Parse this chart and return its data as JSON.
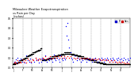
{
  "title": "Milwaukee Weather Evapotranspiration vs Rain per Day (Inches)",
  "legend_labels": [
    "ET",
    "Rain"
  ],
  "legend_colors_legend": [
    "#0000cc",
    "#cc0000"
  ],
  "et_color": "#000000",
  "rain_color": "#0000ff",
  "extra_color": "#ff0000",
  "background_color": "#ffffff",
  "grid_color": "#888888",
  "n_days": 365,
  "ylim": [
    0,
    0.5
  ],
  "xlim": [
    0,
    365
  ],
  "month_ticks": [
    0,
    31,
    59,
    90,
    120,
    151,
    181,
    212,
    243,
    273,
    304,
    334
  ],
  "month_labels": [
    "J",
    "F",
    "M",
    "A",
    "M",
    "J",
    "J",
    "A",
    "S",
    "O",
    "N",
    "D"
  ],
  "dot_size": 1.0,
  "et_data": [
    0.03,
    0.03,
    0.04,
    0.03,
    0.04,
    0.03,
    0.04,
    0.03,
    0.04,
    0.04,
    0.05,
    0.04,
    0.05,
    0.04,
    0.05,
    0.05,
    0.06,
    0.05,
    0.06,
    0.05,
    0.06,
    0.06,
    0.07,
    0.06,
    0.07,
    0.07,
    0.07,
    0.08,
    0.07,
    0.08,
    0.08,
    0.08,
    0.09,
    0.08,
    0.09,
    0.09,
    0.09,
    0.1,
    0.09,
    0.1,
    0.1,
    0.1,
    0.11,
    0.1,
    0.11,
    0.11,
    0.11,
    0.12,
    0.11,
    0.12,
    0.12,
    0.12,
    0.13,
    0.12,
    0.13,
    0.13,
    0.13,
    0.14,
    0.13,
    0.14,
    0.14,
    0.14,
    0.15,
    0.14,
    0.15,
    0.15,
    0.15,
    0.15,
    0.16,
    0.15,
    0.16,
    0.16,
    0.16,
    0.17,
    0.16,
    0.17,
    0.17,
    0.17,
    0.17,
    0.18,
    0.17,
    0.18,
    0.18,
    0.18,
    0.18,
    0.19,
    0.18,
    0.19,
    0.19,
    0.19,
    0.08,
    0.07,
    0.08,
    0.07,
    0.08,
    0.07,
    0.08,
    0.07,
    0.08,
    0.07,
    0.08,
    0.07,
    0.08,
    0.07,
    0.09,
    0.08,
    0.09,
    0.08,
    0.09,
    0.08,
    0.09,
    0.09,
    0.1,
    0.09,
    0.1,
    0.09,
    0.1,
    0.09,
    0.1,
    0.09,
    0.11,
    0.1,
    0.11,
    0.1,
    0.11,
    0.1,
    0.11,
    0.1,
    0.11,
    0.1,
    0.12,
    0.11,
    0.12,
    0.11,
    0.12,
    0.11,
    0.12,
    0.11,
    0.12,
    0.11,
    0.13,
    0.12,
    0.13,
    0.12,
    0.13,
    0.12,
    0.13,
    0.12,
    0.13,
    0.12,
    0.14,
    0.13,
    0.14,
    0.13,
    0.14,
    0.13,
    0.14,
    0.13,
    0.14,
    0.13,
    0.15,
    0.14,
    0.15,
    0.14,
    0.15,
    0.14,
    0.15,
    0.14,
    0.15,
    0.14,
    0.15,
    0.14,
    0.15,
    0.14,
    0.15,
    0.14,
    0.15,
    0.14,
    0.15,
    0.14,
    0.14,
    0.13,
    0.14,
    0.13,
    0.14,
    0.13,
    0.14,
    0.13,
    0.14,
    0.13,
    0.13,
    0.12,
    0.13,
    0.12,
    0.13,
    0.12,
    0.13,
    0.12,
    0.13,
    0.12,
    0.12,
    0.11,
    0.12,
    0.11,
    0.12,
    0.11,
    0.12,
    0.11,
    0.12,
    0.11,
    0.11,
    0.1,
    0.11,
    0.1,
    0.11,
    0.1,
    0.11,
    0.1,
    0.11,
    0.1,
    0.1,
    0.09,
    0.1,
    0.09,
    0.1,
    0.09,
    0.1,
    0.09,
    0.1,
    0.09,
    0.09,
    0.08,
    0.09,
    0.08,
    0.09,
    0.08,
    0.09,
    0.08,
    0.09,
    0.08,
    0.08,
    0.07,
    0.08,
    0.07,
    0.08,
    0.07,
    0.08,
    0.07,
    0.08,
    0.07,
    0.07,
    0.06,
    0.07,
    0.06,
    0.07,
    0.06,
    0.07,
    0.06,
    0.07,
    0.06,
    0.06,
    0.05,
    0.06,
    0.05,
    0.06,
    0.05,
    0.06,
    0.05,
    0.06,
    0.05,
    0.05,
    0.04,
    0.05,
    0.04,
    0.05,
    0.04,
    0.05,
    0.04,
    0.05,
    0.04,
    0.04,
    0.03,
    0.04,
    0.03,
    0.04,
    0.03,
    0.04,
    0.03,
    0.04,
    0.03,
    0.03,
    0.03,
    0.03,
    0.03,
    0.03,
    0.03,
    0.03,
    0.03,
    0.03,
    0.03,
    0.03,
    0.03,
    0.03,
    0.03,
    0.03,
    0.03,
    0.03,
    0.03,
    0.03,
    0.03,
    0.03,
    0.03,
    0.03,
    0.03,
    0.03,
    0.03,
    0.03,
    0.03,
    0.03,
    0.03,
    0.03,
    0.03,
    0.03,
    0.03,
    0.03,
    0.03,
    0.03,
    0.03,
    0.03,
    0.03,
    0.03,
    0.03,
    0.03,
    0.03,
    0.03,
    0.03,
    0.03,
    0.03,
    0.03,
    0.03,
    0.03,
    0.03,
    0.03,
    0.03,
    0.03,
    0.03,
    0.03,
    0.03,
    0.03,
    0.03,
    0.03,
    0.03,
    0.03,
    0.03,
    0.03,
    0.03,
    0.03,
    0.03,
    0.03,
    0.03,
    0.03,
    0.03,
    0.03,
    0.03,
    0.03
  ],
  "rain_data": [
    0.0,
    0.0,
    0.0,
    0.0,
    0.06,
    0.0,
    0.0,
    0.0,
    0.08,
    0.0,
    0.0,
    0.05,
    0.0,
    0.0,
    0.0,
    0.1,
    0.0,
    0.0,
    0.0,
    0.0,
    0.07,
    0.0,
    0.0,
    0.0,
    0.09,
    0.0,
    0.0,
    0.0,
    0.0,
    0.06,
    0.0,
    0.0,
    0.08,
    0.0,
    0.0,
    0.0,
    0.05,
    0.0,
    0.0,
    0.0,
    0.0,
    0.12,
    0.0,
    0.0,
    0.0,
    0.07,
    0.0,
    0.0,
    0.0,
    0.0,
    0.06,
    0.0,
    0.0,
    0.09,
    0.0,
    0.0,
    0.0,
    0.05,
    0.0,
    0.0,
    0.0,
    0.08,
    0.0,
    0.0,
    0.0,
    0.06,
    0.0,
    0.0,
    0.0,
    0.0,
    0.1,
    0.0,
    0.0,
    0.07,
    0.0,
    0.0,
    0.0,
    0.08,
    0.0,
    0.0,
    0.0,
    0.05,
    0.0,
    0.0,
    0.0,
    0.09,
    0.0,
    0.0,
    0.0,
    0.06,
    0.0,
    0.1,
    0.0,
    0.0,
    0.08,
    0.0,
    0.0,
    0.07,
    0.0,
    0.0,
    0.0,
    0.12,
    0.0,
    0.0,
    0.06,
    0.0,
    0.0,
    0.0,
    0.09,
    0.0,
    0.0,
    0.0,
    0.07,
    0.0,
    0.0,
    0.1,
    0.0,
    0.0,
    0.0,
    0.08,
    0.0,
    0.0,
    0.06,
    0.0,
    0.0,
    0.0,
    0.0,
    0.13,
    0.0,
    0.0,
    0.09,
    0.0,
    0.0,
    0.07,
    0.0,
    0.0,
    0.0,
    0.1,
    0.0,
    0.0,
    0.0,
    0.08,
    0.0,
    0.0,
    0.0,
    0.06,
    0.0,
    0.0,
    0.12,
    0.0,
    0.0,
    0.0,
    0.09,
    0.0,
    0.0,
    0.07,
    0.0,
    0.0,
    0.0,
    0.1,
    0.0,
    0.0,
    0.0,
    0.08,
    0.0,
    0.42,
    0.0,
    0.32,
    0.0,
    0.0,
    0.45,
    0.0,
    0.28,
    0.0,
    0.0,
    0.2,
    0.0,
    0.0,
    0.15,
    0.0,
    0.0,
    0.1,
    0.0,
    0.0,
    0.08,
    0.0,
    0.0,
    0.06,
    0.0,
    0.0,
    0.0,
    0.12,
    0.0,
    0.0,
    0.0,
    0.09,
    0.0,
    0.0,
    0.0,
    0.07,
    0.0,
    0.0,
    0.1,
    0.0,
    0.0,
    0.0,
    0.08,
    0.0,
    0.0,
    0.0,
    0.06,
    0.0,
    0.0,
    0.09,
    0.0,
    0.0,
    0.0,
    0.07,
    0.0,
    0.0,
    0.0,
    0.1,
    0.0,
    0.0,
    0.0,
    0.08,
    0.0,
    0.0,
    0.06,
    0.0,
    0.0,
    0.0,
    0.09,
    0.0,
    0.0,
    0.07,
    0.0,
    0.0,
    0.0,
    0.1,
    0.0,
    0.0,
    0.08,
    0.0,
    0.0,
    0.0,
    0.06,
    0.0,
    0.0,
    0.0,
    0.09,
    0.0,
    0.0,
    0.07,
    0.0,
    0.0,
    0.1,
    0.0,
    0.0,
    0.0,
    0.08,
    0.0,
    0.0,
    0.0,
    0.06,
    0.0,
    0.0,
    0.09,
    0.0,
    0.0,
    0.0,
    0.07,
    0.0,
    0.0,
    0.0,
    0.1,
    0.0,
    0.0,
    0.08,
    0.0,
    0.0,
    0.0,
    0.06,
    0.0,
    0.0,
    0.09,
    0.0,
    0.0,
    0.0,
    0.07,
    0.0,
    0.0,
    0.1,
    0.0,
    0.0,
    0.0,
    0.08,
    0.0,
    0.0,
    0.06,
    0.0,
    0.0,
    0.0,
    0.09,
    0.0,
    0.0,
    0.07,
    0.0,
    0.0,
    0.0,
    0.1,
    0.0,
    0.0,
    0.08,
    0.0,
    0.0,
    0.0,
    0.06,
    0.0,
    0.0,
    0.0,
    0.09,
    0.0,
    0.0,
    0.07,
    0.0,
    0.0,
    0.1,
    0.0,
    0.0,
    0.0,
    0.08,
    0.0,
    0.0,
    0.0,
    0.06,
    0.0,
    0.0,
    0.09,
    0.0,
    0.0,
    0.0,
    0.07,
    0.0,
    0.0,
    0.1,
    0.0,
    0.0,
    0.0,
    0.08,
    0.0,
    0.0,
    0.0,
    0.06,
    0.0,
    0.0,
    0.09,
    0.0,
    0.0,
    0.07,
    0.0,
    0.0,
    0.0,
    0.1,
    0.0
  ]
}
